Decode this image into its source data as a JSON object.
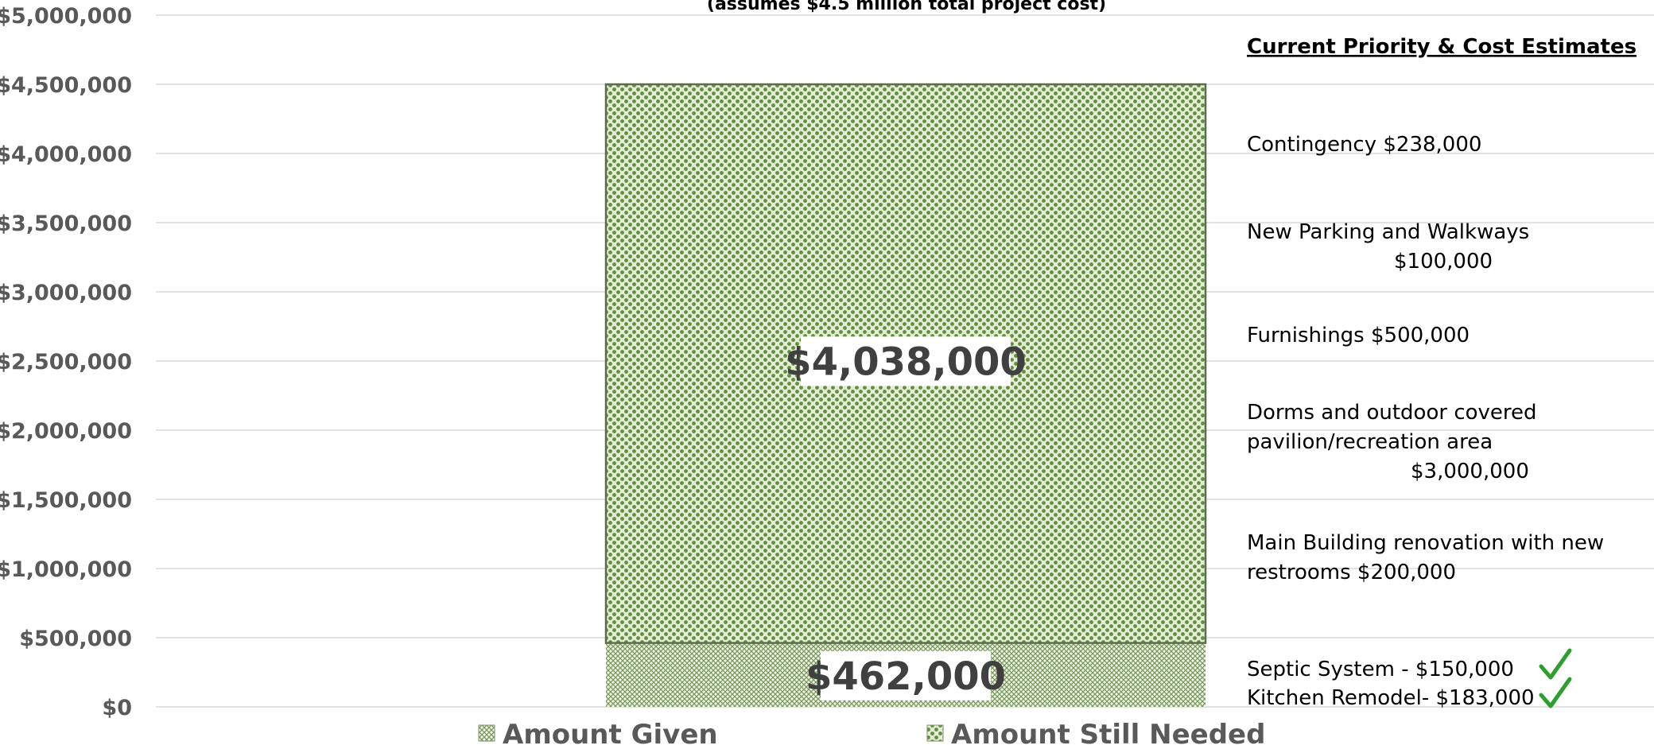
{
  "chart_data": {
    "type": "bar",
    "stacked": true,
    "subtitle": "(assumes $4.5 million total project cost)",
    "categories": [
      ""
    ],
    "series": [
      {
        "name": "Amount Given",
        "values": [
          462000
        ],
        "pattern": "crosshatch",
        "color": "#7a9a5a",
        "label": "$462,000"
      },
      {
        "name": "Amount Still Needed",
        "values": [
          4038000
        ],
        "pattern": "dots",
        "color": "#5f8f3c",
        "label": "$4,038,000"
      }
    ],
    "ylim": [
      0,
      5000000
    ],
    "yticks": [
      {
        "value": 0,
        "label": "$0"
      },
      {
        "value": 500000,
        "label": "$500,000"
      },
      {
        "value": 1000000,
        "label": "$1,000,000"
      },
      {
        "value": 1500000,
        "label": "$1,500,000"
      },
      {
        "value": 2000000,
        "label": "$2,000,000"
      },
      {
        "value": 2500000,
        "label": "$2,500,000"
      },
      {
        "value": 3000000,
        "label": "$3,000,000"
      },
      {
        "value": 3500000,
        "label": "$3,500,000"
      },
      {
        "value": 4000000,
        "label": "$4,000,000"
      },
      {
        "value": 4500000,
        "label": "$4,500,000"
      },
      {
        "value": 5000000,
        "label": "$5,000,000"
      }
    ],
    "grid": true,
    "legend_position": "bottom",
    "annotations": {
      "heading": "Current Priority & Cost Estimates",
      "items": [
        {
          "lines": [
            "Contingency     $238,000"
          ],
          "checked": false
        },
        {
          "lines": [
            "New Parking and Walkways",
            "$100,000"
          ],
          "checked": false
        },
        {
          "lines": [
            "Furnishings       $500,000"
          ],
          "checked": false
        },
        {
          "lines": [
            "Dorms and outdoor covered",
            "pavilion/recreation area",
            "$3,000,000"
          ],
          "checked": false
        },
        {
          "lines": [
            "Main Building renovation with new",
            "restrooms                  $200,000"
          ],
          "checked": false
        },
        {
          "lines": [
            "Septic System -      $150,000"
          ],
          "checked": true
        },
        {
          "lines": [
            "Kitchen Remodel- $183,000"
          ],
          "checked": true
        }
      ]
    }
  }
}
